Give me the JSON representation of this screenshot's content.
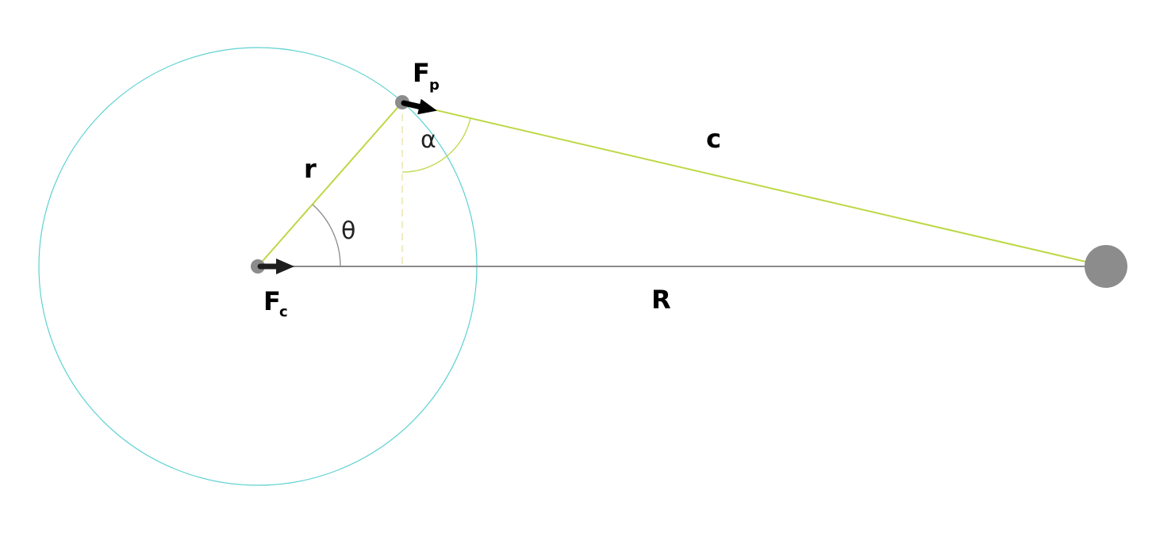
{
  "colors": {
    "orbit": "#5fd1d1",
    "green_line": "#bcd845",
    "axis_line": "#8a8a8a",
    "body": "#8c8c8c",
    "arrow": "#1e1e1e",
    "arc_theta": "#8a8a8a",
    "arc_alpha": "#bcd845"
  },
  "labels": {
    "r": "r",
    "c": "c",
    "R": "R",
    "theta": "θ",
    "alpha": "α",
    "Fp_main": "F",
    "Fp_sub": "p",
    "Fc_main": "F",
    "Fc_sub": "c"
  },
  "icons": {
    "center_body": "small-gray-circle",
    "orbiting_body": "small-gray-circle",
    "distant_body": "large-gray-circle",
    "force_arrow": "black-arrow"
  }
}
